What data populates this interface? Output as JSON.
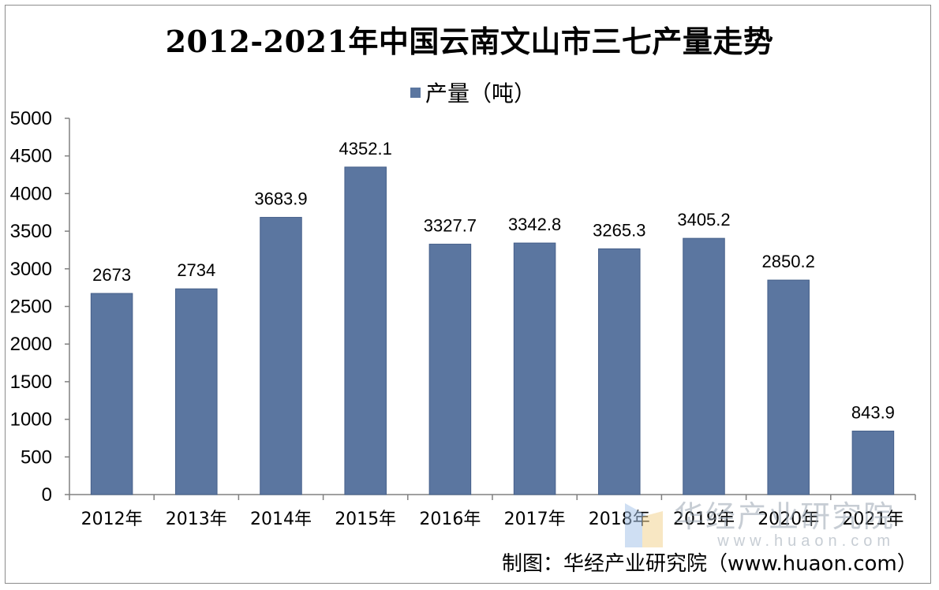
{
  "chart_data": {
    "type": "bar",
    "title": "2012-2021年中国云南文山市三七产量走势",
    "legend": [
      {
        "name": "产量（吨）",
        "color": "#5b76a0"
      }
    ],
    "legend_position": "top",
    "categories": [
      "2012年",
      "2013年",
      "2014年",
      "2015年",
      "2016年",
      "2017年",
      "2018年",
      "2019年",
      "2020年",
      "2021年"
    ],
    "values": [
      2673,
      2734,
      3683.9,
      4352.1,
      3327.7,
      3342.8,
      3265.3,
      3405.2,
      2850.2,
      843.9
    ],
    "data_labels": [
      "2673",
      "2734",
      "3683.9",
      "4352.1",
      "3327.7",
      "3342.8",
      "3265.3",
      "3405.2",
      "2850.2",
      "843.9"
    ],
    "y_ticks": [
      0,
      500,
      1000,
      1500,
      2000,
      2500,
      3000,
      3500,
      4000,
      4500,
      5000
    ],
    "ylim": [
      0,
      5000
    ],
    "xlabel": "",
    "ylabel": "",
    "grid": false,
    "bar_color": "#5b76a0"
  },
  "watermark": {
    "name": "华经产业研究院",
    "url": "www.huaon.com"
  },
  "source": "制图：华经产业研究院（www.huaon.com）"
}
